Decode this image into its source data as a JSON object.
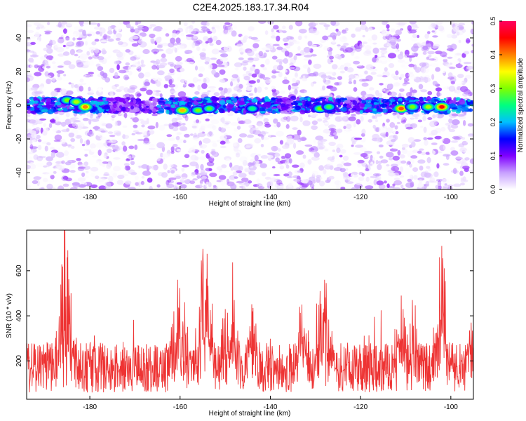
{
  "title": "C2E4.2025.183.17.34.R04",
  "chart_data": [
    {
      "type": "heatmap",
      "xlabel": "Height of straight line (km)",
      "ylabel": "Frequency (Hz)",
      "xlim": [
        -194,
        -95
      ],
      "ylim": [
        -50,
        50
      ],
      "x_ticks": [
        -180,
        -160,
        -140,
        -120,
        -100
      ],
      "y_ticks": [
        -40,
        -20,
        0,
        20,
        40
      ],
      "colorbar": {
        "label": "Normalized spectral amplitude",
        "range": [
          0.0,
          0.5
        ],
        "ticks": [
          "0.0",
          "0.1",
          "0.2",
          "0.3",
          "0.4",
          "0.5"
        ],
        "colors": [
          "#ffffff",
          "#c8a0ff",
          "#8000ff",
          "#0000ff",
          "#00c0ff",
          "#00ff80",
          "#80ff00",
          "#ffff00",
          "#ff8000",
          "#ff0000",
          "#ff0060"
        ]
      },
      "band_center_hz": 0,
      "band_halfwidth_hz": 3,
      "hotspots": [
        {
          "x": -185.0,
          "y": 3,
          "value": 0.3
        },
        {
          "x": -183.0,
          "y": 2,
          "value": 0.32
        },
        {
          "x": -181.0,
          "y": -1,
          "value": 0.4
        },
        {
          "x": -159.5,
          "y": -3,
          "value": 0.38
        },
        {
          "x": -156.0,
          "y": -3,
          "value": 0.3
        },
        {
          "x": -153.5,
          "y": -2,
          "value": 0.28
        },
        {
          "x": -144.0,
          "y": -2,
          "value": 0.25
        },
        {
          "x": -129.0,
          "y": -2,
          "value": 0.3
        },
        {
          "x": -127.0,
          "y": -1,
          "value": 0.27
        },
        {
          "x": -111.0,
          "y": -2,
          "value": 0.42
        },
        {
          "x": -108.5,
          "y": -1,
          "value": 0.3
        },
        {
          "x": -105.0,
          "y": -1,
          "value": 0.32
        },
        {
          "x": -102.0,
          "y": -1,
          "value": 0.45
        }
      ]
    },
    {
      "type": "line",
      "xlabel": "Height of straight line (km)",
      "ylabel": "SNR (10 * v/v)",
      "xlim": [
        -194,
        -95
      ],
      "ylim": [
        30,
        780
      ],
      "x_ticks": [
        -180,
        -160,
        -140,
        -120,
        -100
      ],
      "y_ticks": [
        200,
        400,
        600
      ],
      "color": "#ee3333",
      "baseline": 170,
      "peaks": [
        {
          "x": -185.5,
          "y": 780
        },
        {
          "x": -185.0,
          "y": 660
        },
        {
          "x": -184.5,
          "y": 490
        },
        {
          "x": -160.5,
          "y": 560
        },
        {
          "x": -159.0,
          "y": 460
        },
        {
          "x": -155.0,
          "y": 630
        },
        {
          "x": -154.0,
          "y": 675
        },
        {
          "x": -150.0,
          "y": 430
        },
        {
          "x": -148.0,
          "y": 470
        },
        {
          "x": -144.0,
          "y": 420
        },
        {
          "x": -133.0,
          "y": 450
        },
        {
          "x": -129.0,
          "y": 510
        },
        {
          "x": -128.0,
          "y": 560
        },
        {
          "x": -111.0,
          "y": 490
        },
        {
          "x": -108.5,
          "y": 470
        },
        {
          "x": -102.5,
          "y": 660
        },
        {
          "x": -102.0,
          "y": 710
        },
        {
          "x": -95.5,
          "y": 370
        }
      ]
    }
  ]
}
